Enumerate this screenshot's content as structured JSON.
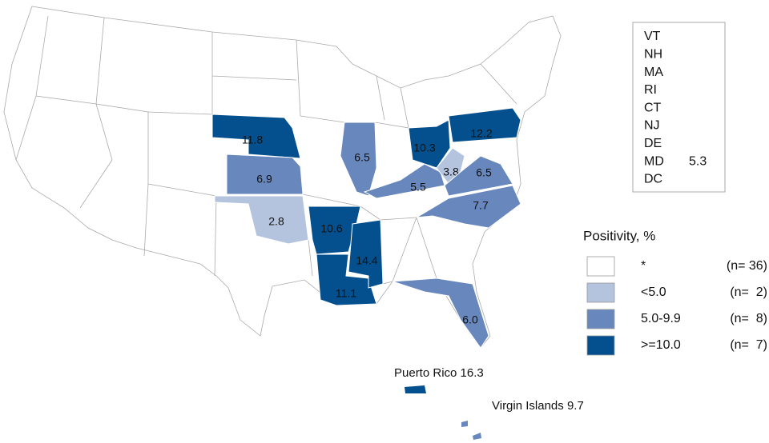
{
  "chart_data": {
    "type": "choropleth",
    "states": {
      "values": [
        11.8,
        6.9,
        2.8,
        10.6,
        11.1,
        14.4,
        6.5,
        5.5,
        10.3,
        3.8,
        6.5,
        12.2,
        7.7,
        6
      ],
      "value_labels": [
        "11.8",
        "6.9",
        "2.8",
        "10.6",
        "11.1",
        "14.4",
        "6.5",
        "5.5",
        "10.3",
        "3.8",
        "6.5",
        "12.2",
        "7.7",
        "6.0"
      ],
      "colors": [
        "#04508f",
        "#6787bd",
        "#b4c3de",
        "#04508f",
        "#04508f",
        "#04508f",
        "#6787bd",
        "#6787bd",
        "#04508f",
        "#b4c3de",
        "#6787bd",
        "#04508f",
        "#6787bd",
        "#6787bd"
      ]
    },
    "territories": {
      "names": [
        "Puerto Rico",
        "Virgin Islands"
      ],
      "values": [
        16.3,
        9.7
      ],
      "colors": [
        "#04508f",
        "#6787bd"
      ]
    },
    "inset": {
      "labels": [
        "VT",
        "NH",
        "MA",
        "RI",
        "CT",
        "NJ",
        "DE",
        "MD",
        "DC"
      ],
      "values": [
        null,
        null,
        null,
        null,
        null,
        null,
        null,
        5.3,
        null
      ]
    },
    "legend": {
      "title": "Positivity, %",
      "labels": [
        "*",
        "<5.0",
        "5.0-9.9",
        ">=10.0"
      ],
      "colors": [
        "#ffffff",
        "#b4c3de",
        "#6787bd",
        "#04508f"
      ],
      "counts": [
        {
          "value": 36,
          "label": "(n= 36)"
        },
        {
          "value": 2,
          "label": "(n=  2)"
        },
        {
          "value": 8,
          "label": "(n=  8)"
        },
        {
          "value": 7,
          "label": "(n=  7)"
        }
      ]
    }
  }
}
